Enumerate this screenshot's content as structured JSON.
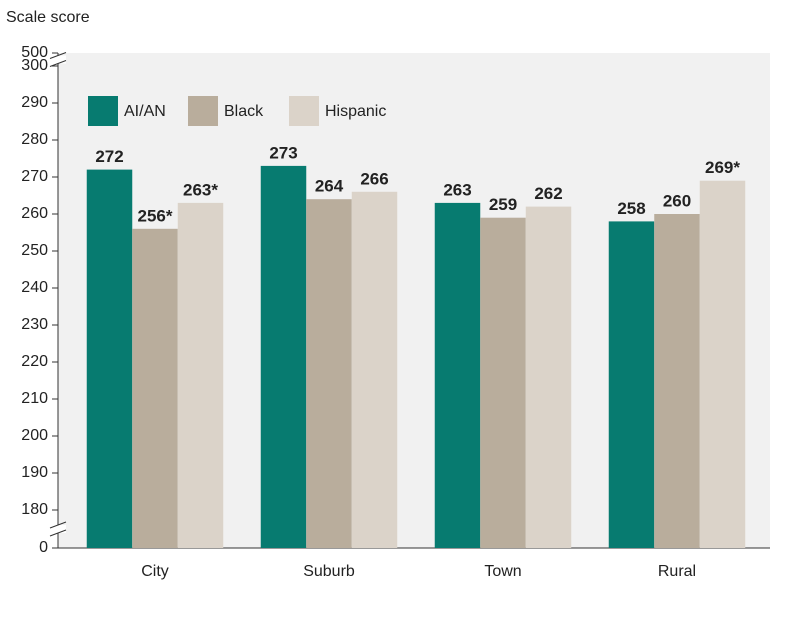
{
  "chart_data": {
    "type": "bar",
    "y_label": "Scale score",
    "categories": [
      "City",
      "Suburb",
      "Town",
      "Rural"
    ],
    "series": [
      {
        "name": "AI/AN",
        "color": "#077b70",
        "values": [
          272,
          273,
          263,
          258
        ]
      },
      {
        "name": "Black",
        "color": "#b9ad9c",
        "values": [
          256,
          264,
          259,
          260
        ],
        "value_labels": [
          "256*",
          "264",
          "259",
          "260"
        ]
      },
      {
        "name": "Hispanic",
        "color": "#dbd3c9",
        "values": [
          263,
          266,
          262,
          269
        ],
        "value_labels": [
          "263*",
          "266",
          "262",
          "269*"
        ]
      }
    ],
    "ylim": [
      0,
      500
    ],
    "yticks": [
      0,
      180,
      190,
      200,
      210,
      220,
      230,
      240,
      250,
      260,
      270,
      280,
      290,
      300,
      500
    ],
    "axis_break": true,
    "legend": "top-left"
  }
}
